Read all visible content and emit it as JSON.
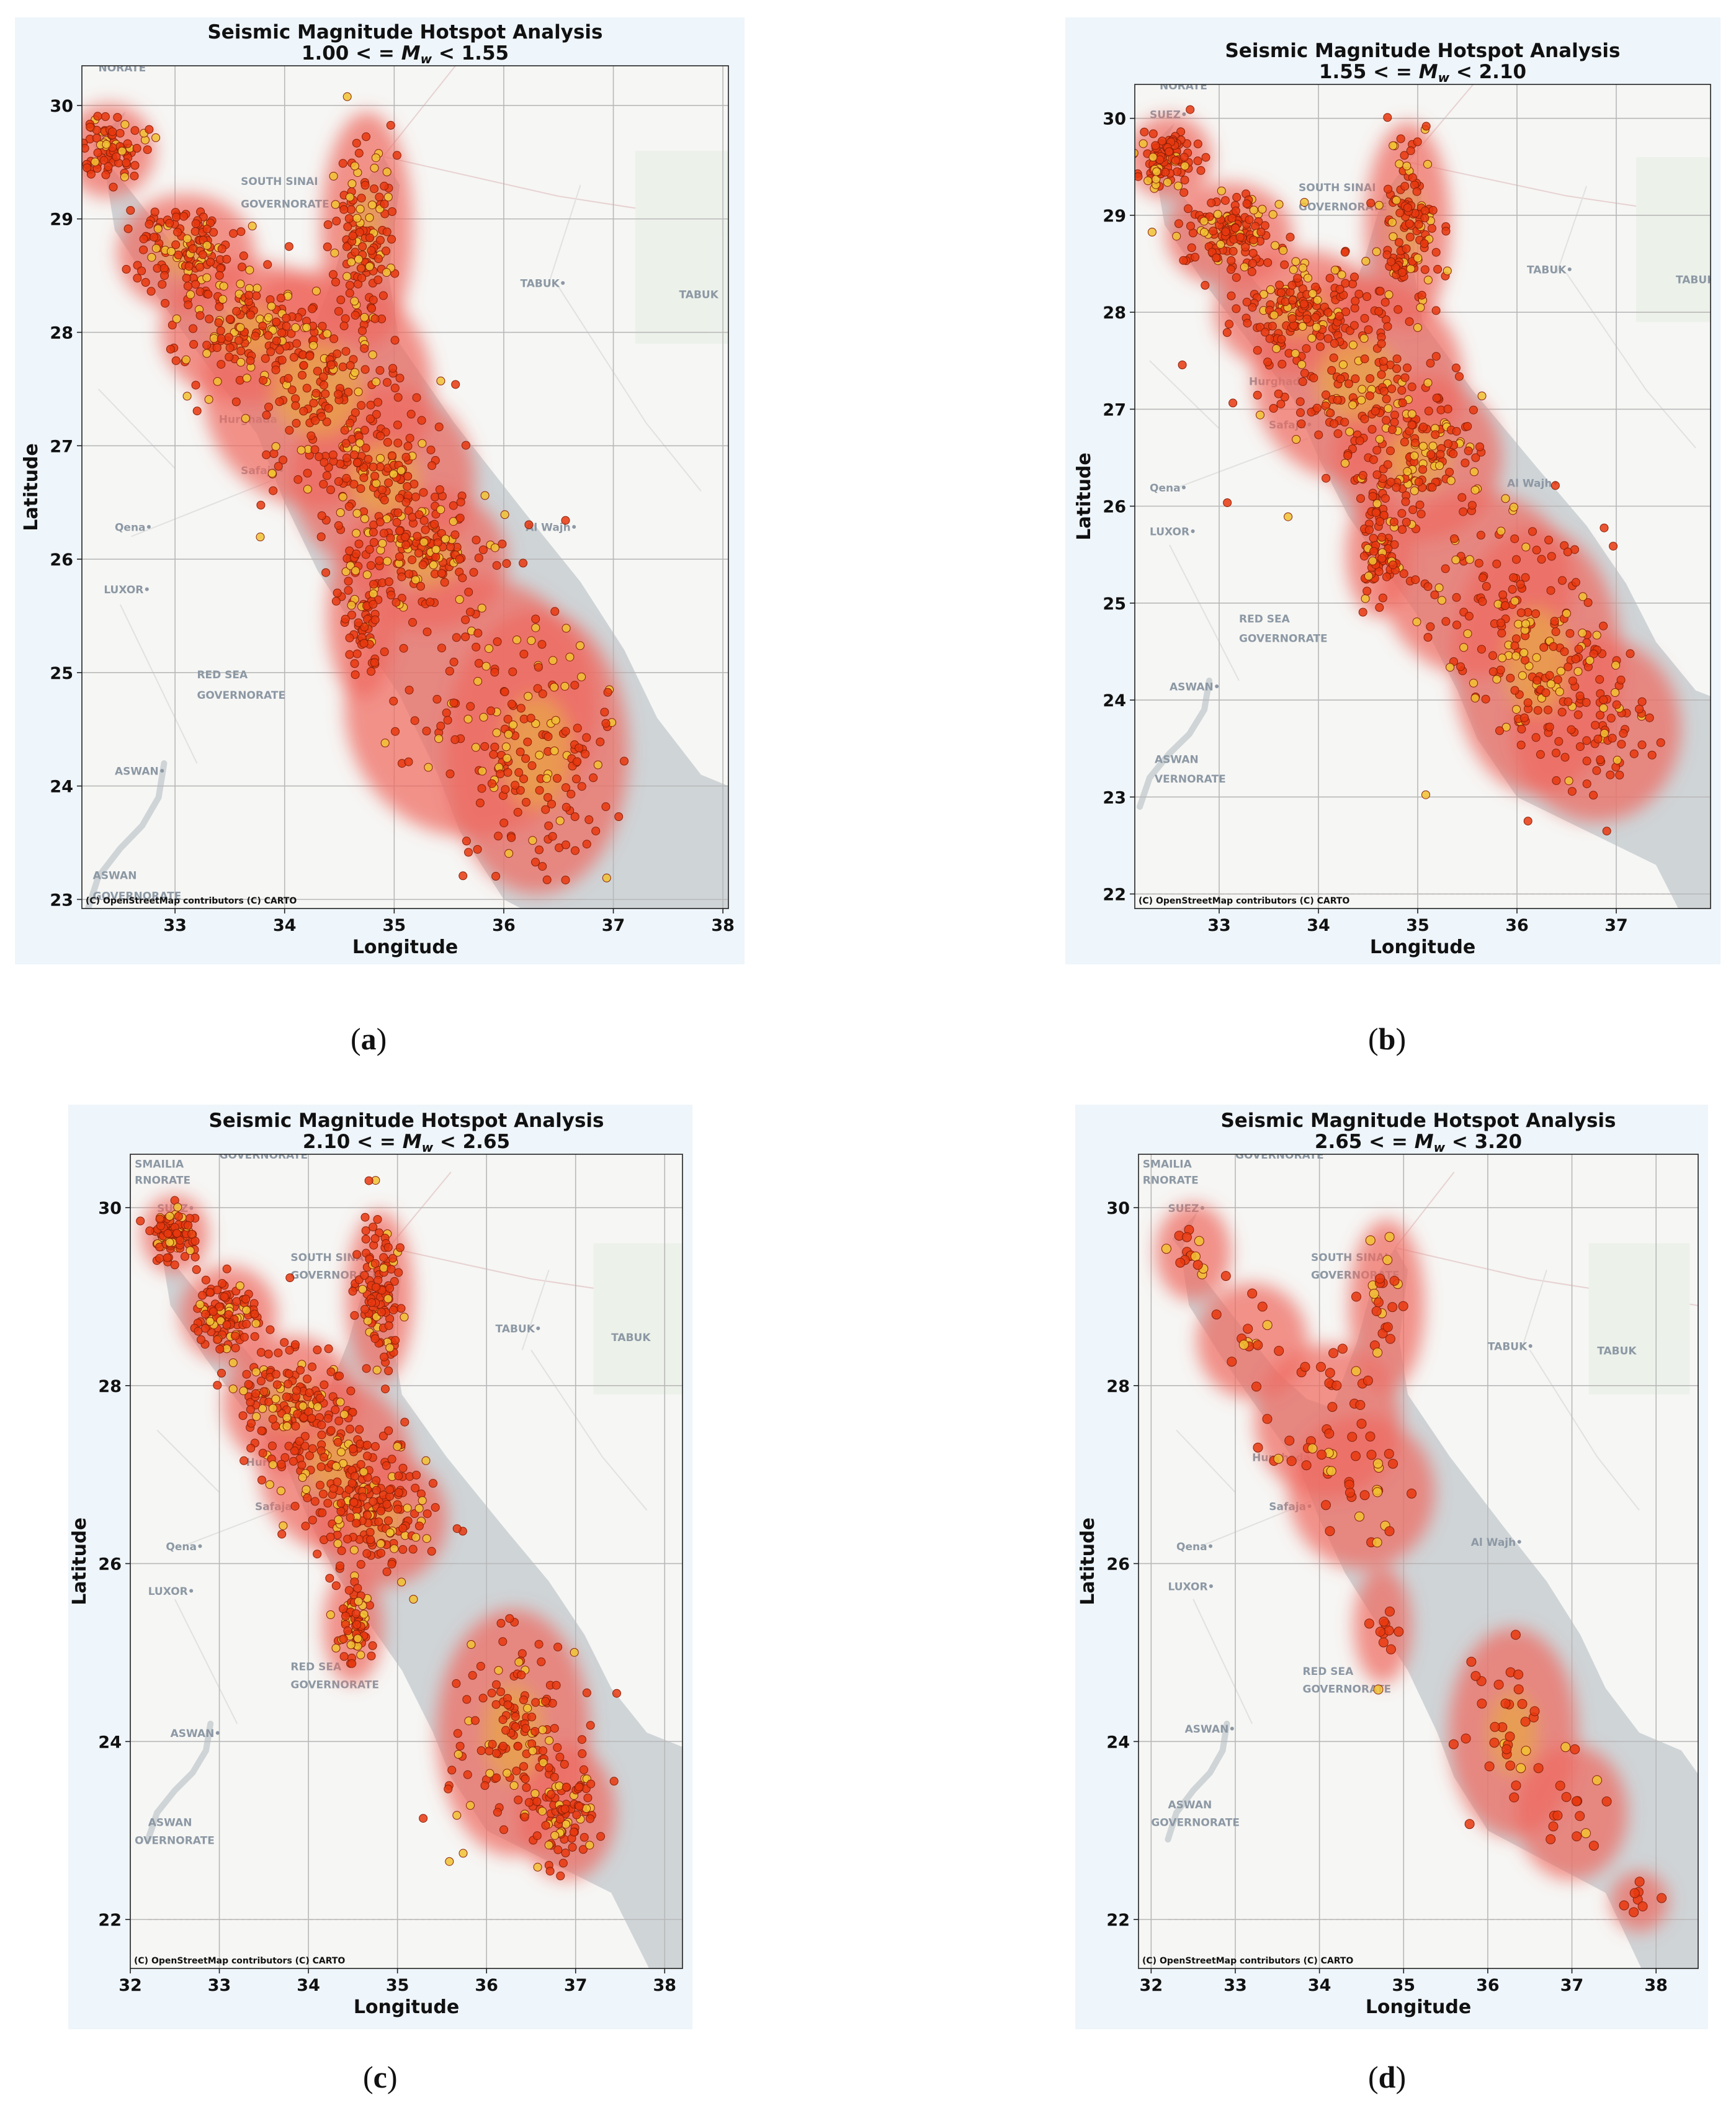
{
  "figure": {
    "panels": [
      {
        "id": "a",
        "caption_letter": "a",
        "title": "Seismic Magnitude Hotspot Analysis",
        "subtitle": "1.00 < = M_w < 1.55",
        "range_lo": "1.00",
        "range_hi": "1.55",
        "xlabel": "Longitude",
        "ylabel": "Latitude",
        "attribution": "(C) OpenStreetMap contributors (C) CARTO",
        "xlim": [
          32.15,
          38.05
        ],
        "ylim": [
          22.92,
          30.35
        ],
        "xticks": [
          "33",
          "34",
          "35",
          "36",
          "37",
          "38"
        ],
        "yticks": [
          "23",
          "24",
          "25",
          "26",
          "27",
          "28",
          "29",
          "30"
        ],
        "place_labels": [
          {
            "text": "SOUTH SINAI",
            "lon": 33.6,
            "lat": 29.3
          },
          {
            "text": "GOVERNORATE",
            "lon": 33.6,
            "lat": 29.1
          },
          {
            "text": "TABUK•",
            "lon": 36.15,
            "lat": 28.4
          },
          {
            "text": "TABUK",
            "lon": 37.6,
            "lat": 28.3
          },
          {
            "text": "Hurghada",
            "lon": 33.4,
            "lat": 27.2
          },
          {
            "text": "Safaja•",
            "lon": 33.6,
            "lat": 26.75
          },
          {
            "text": "Qena•",
            "lon": 32.45,
            "lat": 26.25
          },
          {
            "text": "LUXOR•",
            "lon": 32.35,
            "lat": 25.7
          },
          {
            "text": "Al Wajh•",
            "lon": 36.2,
            "lat": 26.25
          },
          {
            "text": "RED SEA",
            "lon": 33.2,
            "lat": 24.95
          },
          {
            "text": "GOVERNORATE",
            "lon": 33.2,
            "lat": 24.77
          },
          {
            "text": "ASWAN•",
            "lon": 32.45,
            "lat": 24.1
          },
          {
            "text": "ASWAN",
            "lon": 32.25,
            "lat": 23.18
          },
          {
            "text": "GOVERNORATE",
            "lon": 32.25,
            "lat": 23.0
          },
          {
            "text": "NORATE",
            "lon": 32.3,
            "lat": 30.3
          }
        ]
      },
      {
        "id": "b",
        "caption_letter": "b",
        "title": "Seismic Magnitude Hotspot Analysis",
        "subtitle": "1.55 < = M_w < 2.10",
        "range_lo": "1.55",
        "range_hi": "2.10",
        "xlabel": "Longitude",
        "ylabel": "Latitude",
        "attribution": "(C) OpenStreetMap contributors (C) CARTO",
        "xlim": [
          32.15,
          37.95
        ],
        "ylim": [
          21.85,
          30.35
        ],
        "xticks": [
          "33",
          "34",
          "35",
          "36",
          "37"
        ],
        "yticks": [
          "22",
          "23",
          "24",
          "25",
          "26",
          "27",
          "28",
          "29",
          "30"
        ],
        "place_labels": [
          {
            "text": "SOUTH SINAI",
            "lon": 33.8,
            "lat": 29.25
          },
          {
            "text": "GOVERNORATE",
            "lon": 33.8,
            "lat": 29.05
          },
          {
            "text": "TABUK•",
            "lon": 36.1,
            "lat": 28.4
          },
          {
            "text": "TABUK",
            "lon": 37.6,
            "lat": 28.3
          },
          {
            "text": "Hurghada",
            "lon": 33.3,
            "lat": 27.25
          },
          {
            "text": "Safaja•",
            "lon": 33.5,
            "lat": 26.8
          },
          {
            "text": "Qena•",
            "lon": 32.3,
            "lat": 26.15
          },
          {
            "text": "LUXOR•",
            "lon": 32.3,
            "lat": 25.7
          },
          {
            "text": "Al Wajh•",
            "lon": 35.9,
            "lat": 26.2
          },
          {
            "text": "RED SEA",
            "lon": 33.2,
            "lat": 24.8
          },
          {
            "text": "GOVERNORATE",
            "lon": 33.2,
            "lat": 24.6
          },
          {
            "text": "ASWAN•",
            "lon": 32.5,
            "lat": 24.1
          },
          {
            "text": "ASWAN",
            "lon": 32.35,
            "lat": 23.35
          },
          {
            "text": "VERNORATE",
            "lon": 32.35,
            "lat": 23.15
          },
          {
            "text": "NORATE",
            "lon": 32.4,
            "lat": 30.3
          },
          {
            "text": "SUEZ•",
            "lon": 32.3,
            "lat": 30.0
          }
        ]
      },
      {
        "id": "c",
        "caption_letter": "c",
        "title": "Seismic Magnitude Hotspot Analysis",
        "subtitle": "2.10 < = M_w < 2.65",
        "range_lo": "2.10",
        "range_hi": "2.65",
        "xlabel": "Longitude",
        "ylabel": "Latitude",
        "attribution": "(C) OpenStreetMap contributors (C) CARTO",
        "xlim": [
          32.0,
          38.2
        ],
        "ylim": [
          21.45,
          30.6
        ],
        "xticks": [
          "32",
          "33",
          "34",
          "35",
          "36",
          "37",
          "38"
        ],
        "yticks": [
          "22",
          "24",
          "26",
          "28",
          "30"
        ],
        "place_labels": [
          {
            "text": "SMAILIA",
            "lon": 32.05,
            "lat": 30.45
          },
          {
            "text": "RNORATE",
            "lon": 32.05,
            "lat": 30.27
          },
          {
            "text": "GOVERNORATE",
            "lon": 33.0,
            "lat": 30.55
          },
          {
            "text": "SOUTH SINAI",
            "lon": 33.8,
            "lat": 29.4
          },
          {
            "text": "GOVERNORATE",
            "lon": 33.8,
            "lat": 29.2
          },
          {
            "text": "TABUK•",
            "lon": 36.1,
            "lat": 28.6
          },
          {
            "text": "TABUK",
            "lon": 37.4,
            "lat": 28.5
          },
          {
            "text": "Hurghada",
            "lon": 33.3,
            "lat": 27.1
          },
          {
            "text": "Safaja•",
            "lon": 33.4,
            "lat": 26.6
          },
          {
            "text": "Qena•",
            "lon": 32.4,
            "lat": 26.15
          },
          {
            "text": "LUXOR•",
            "lon": 32.2,
            "lat": 25.65
          },
          {
            "text": "RED SEA",
            "lon": 33.8,
            "lat": 24.8
          },
          {
            "text": "GOVERNORATE",
            "lon": 33.8,
            "lat": 24.6
          },
          {
            "text": "ASWAN•",
            "lon": 32.45,
            "lat": 24.05
          },
          {
            "text": "ASWAN",
            "lon": 32.2,
            "lat": 23.05
          },
          {
            "text": "OVERNORATE",
            "lon": 32.05,
            "lat": 22.85
          },
          {
            "text": "SUEZ•",
            "lon": 32.3,
            "lat": 29.95
          }
        ]
      },
      {
        "id": "d",
        "caption_letter": "d",
        "title": "Seismic Magnitude Hotspot Analysis",
        "subtitle": "2.65 < = M_w < 3.20",
        "range_lo": "2.65",
        "range_hi": "3.20",
        "xlabel": "Longitude",
        "ylabel": "Latitude",
        "attribution": "(C) OpenStreetMap contributors (C) CARTO",
        "xlim": [
          31.85,
          38.5
        ],
        "ylim": [
          21.45,
          30.6
        ],
        "xticks": [
          "32",
          "33",
          "34",
          "35",
          "36",
          "37",
          "38"
        ],
        "yticks": [
          "22",
          "24",
          "26",
          "28",
          "30"
        ],
        "place_labels": [
          {
            "text": "SMAILIA",
            "lon": 31.9,
            "lat": 30.45
          },
          {
            "text": "RNORATE",
            "lon": 31.9,
            "lat": 30.27
          },
          {
            "text": "GOVERNORATE",
            "lon": 33.0,
            "lat": 30.55
          },
          {
            "text": "SUEZ•",
            "lon": 32.2,
            "lat": 29.95
          },
          {
            "text": "SOUTH SINAI",
            "lon": 33.9,
            "lat": 29.4
          },
          {
            "text": "GOVERNORATE",
            "lon": 33.9,
            "lat": 29.2
          },
          {
            "text": "TABUK•",
            "lon": 36.0,
            "lat": 28.4
          },
          {
            "text": "TABUK",
            "lon": 37.3,
            "lat": 28.35
          },
          {
            "text": "Hurghada",
            "lon": 33.2,
            "lat": 27.15
          },
          {
            "text": "Safaja•",
            "lon": 33.4,
            "lat": 26.6
          },
          {
            "text": "Qena•",
            "lon": 32.3,
            "lat": 26.15
          },
          {
            "text": "Al Wajh•",
            "lon": 35.8,
            "lat": 26.2
          },
          {
            "text": "LUXOR•",
            "lon": 32.2,
            "lat": 25.7
          },
          {
            "text": "RED SEA",
            "lon": 33.8,
            "lat": 24.75
          },
          {
            "text": "GOVERNORATE",
            "lon": 33.8,
            "lat": 24.55
          },
          {
            "text": "ASWAN•",
            "lon": 32.4,
            "lat": 24.1
          },
          {
            "text": "ASWAN",
            "lon": 32.2,
            "lat": 23.25
          },
          {
            "text": "GOVERNORATE",
            "lon": 32.0,
            "lat": 23.05
          }
        ]
      }
    ]
  },
  "colors": {
    "land": "#f6f6f4",
    "sea": "#cfd4d7",
    "grid": "#b8b8b8",
    "hotspot_outer": "#ee6a5e",
    "hotspot_inner": "#e9a24a",
    "event_fill": "#e8380f",
    "event_edge": "#8a2008",
    "event_light": "#f1c232",
    "panel_bg": "#eef5fb"
  },
  "chart_data": [
    {
      "type": "scatter",
      "title": "Seismic Magnitude Hotspot Analysis",
      "subtitle": "1.00 < = M_w < 1.55",
      "xlabel": "Longitude",
      "ylabel": "Latitude",
      "xlim": [
        32.15,
        38.05
      ],
      "ylim": [
        22.92,
        30.35
      ],
      "clusters": [
        {
          "lon": 32.4,
          "lat": 29.6,
          "density": 0.6,
          "spread": [
            0.15,
            0.15
          ]
        },
        {
          "lon": 33.1,
          "lat": 28.7,
          "density": 0.9,
          "spread": [
            0.25,
            0.2
          ]
        },
        {
          "lon": 33.7,
          "lat": 28.0,
          "density": 1.0,
          "spread": [
            0.35,
            0.25
          ]
        },
        {
          "lon": 34.3,
          "lat": 27.5,
          "density": 1.0,
          "spread": [
            0.45,
            0.45
          ]
        },
        {
          "lon": 34.9,
          "lat": 26.7,
          "density": 1.0,
          "spread": [
            0.35,
            0.35
          ]
        },
        {
          "lon": 35.3,
          "lat": 26.0,
          "density": 0.9,
          "spread": [
            0.3,
            0.25
          ]
        },
        {
          "lon": 34.75,
          "lat": 28.9,
          "density": 0.9,
          "spread": [
            0.15,
            0.45
          ]
        },
        {
          "lon": 34.7,
          "lat": 25.5,
          "density": 0.5,
          "spread": [
            0.1,
            0.3
          ]
        },
        {
          "lon": 36.3,
          "lat": 24.3,
          "density": 1.0,
          "spread": [
            0.35,
            0.55
          ]
        },
        {
          "lon": 35.7,
          "lat": 24.7,
          "density": 0.4,
          "spread": [
            0.5,
            0.5
          ]
        }
      ]
    },
    {
      "type": "scatter",
      "title": "Seismic Magnitude Hotspot Analysis",
      "subtitle": "1.55 < = M_w < 2.10",
      "xlabel": "Longitude",
      "ylabel": "Latitude",
      "xlim": [
        32.15,
        37.95
      ],
      "ylim": [
        21.85,
        30.35
      ],
      "clusters": [
        {
          "lon": 32.5,
          "lat": 29.6,
          "density": 0.7,
          "spread": [
            0.15,
            0.15
          ]
        },
        {
          "lon": 33.1,
          "lat": 28.8,
          "density": 0.9,
          "spread": [
            0.25,
            0.2
          ]
        },
        {
          "lon": 33.8,
          "lat": 28.0,
          "density": 1.0,
          "spread": [
            0.35,
            0.25
          ]
        },
        {
          "lon": 34.4,
          "lat": 27.3,
          "density": 1.0,
          "spread": [
            0.45,
            0.45
          ]
        },
        {
          "lon": 35.0,
          "lat": 26.5,
          "density": 1.0,
          "spread": [
            0.35,
            0.35
          ]
        },
        {
          "lon": 34.9,
          "lat": 28.9,
          "density": 0.9,
          "spread": [
            0.15,
            0.45
          ]
        },
        {
          "lon": 34.6,
          "lat": 25.5,
          "density": 0.5,
          "spread": [
            0.1,
            0.25
          ]
        },
        {
          "lon": 36.2,
          "lat": 24.4,
          "density": 1.0,
          "spread": [
            0.35,
            0.6
          ]
        },
        {
          "lon": 36.8,
          "lat": 23.7,
          "density": 0.5,
          "spread": [
            0.35,
            0.4
          ]
        },
        {
          "lon": 35.6,
          "lat": 25.2,
          "density": 0.4,
          "spread": [
            0.4,
            0.4
          ]
        }
      ]
    },
    {
      "type": "scatter",
      "title": "Seismic Magnitude Hotspot Analysis",
      "subtitle": "2.10 < = M_w < 2.65",
      "xlabel": "Longitude",
      "ylabel": "Latitude",
      "xlim": [
        32.0,
        38.2
      ],
      "ylim": [
        21.45,
        30.6
      ],
      "clusters": [
        {
          "lon": 32.5,
          "lat": 29.7,
          "density": 0.7,
          "spread": [
            0.12,
            0.15
          ]
        },
        {
          "lon": 33.1,
          "lat": 28.8,
          "density": 0.8,
          "spread": [
            0.2,
            0.2
          ]
        },
        {
          "lon": 33.8,
          "lat": 27.8,
          "density": 0.9,
          "spread": [
            0.3,
            0.3
          ]
        },
        {
          "lon": 34.3,
          "lat": 27.1,
          "density": 1.0,
          "spread": [
            0.35,
            0.4
          ]
        },
        {
          "lon": 34.8,
          "lat": 26.5,
          "density": 0.9,
          "spread": [
            0.3,
            0.3
          ]
        },
        {
          "lon": 34.8,
          "lat": 29.0,
          "density": 0.8,
          "spread": [
            0.12,
            0.4
          ]
        },
        {
          "lon": 34.5,
          "lat": 25.3,
          "density": 0.5,
          "spread": [
            0.1,
            0.25
          ]
        },
        {
          "lon": 36.3,
          "lat": 24.1,
          "density": 1.0,
          "spread": [
            0.35,
            0.6
          ]
        },
        {
          "lon": 36.9,
          "lat": 23.2,
          "density": 0.6,
          "spread": [
            0.2,
            0.3
          ]
        }
      ]
    },
    {
      "type": "scatter",
      "title": "Seismic Magnitude Hotspot Analysis",
      "subtitle": "2.65 < = M_w < 3.20",
      "xlabel": "Longitude",
      "ylabel": "Latitude",
      "xlim": [
        31.85,
        38.5
      ],
      "ylim": [
        21.45,
        30.6
      ],
      "clusters": [
        {
          "lon": 32.5,
          "lat": 29.5,
          "density": 0.4,
          "spread": [
            0.15,
            0.2
          ]
        },
        {
          "lon": 33.2,
          "lat": 28.5,
          "density": 0.4,
          "spread": [
            0.25,
            0.25
          ]
        },
        {
          "lon": 34.1,
          "lat": 27.6,
          "density": 0.8,
          "spread": [
            0.35,
            0.35
          ]
        },
        {
          "lon": 34.5,
          "lat": 26.8,
          "density": 0.7,
          "spread": [
            0.35,
            0.35
          ]
        },
        {
          "lon": 34.8,
          "lat": 28.9,
          "density": 0.6,
          "spread": [
            0.15,
            0.4
          ]
        },
        {
          "lon": 34.75,
          "lat": 25.3,
          "density": 0.3,
          "spread": [
            0.1,
            0.25
          ]
        },
        {
          "lon": 36.3,
          "lat": 24.1,
          "density": 0.9,
          "spread": [
            0.3,
            0.5
          ]
        },
        {
          "lon": 37.0,
          "lat": 23.2,
          "density": 0.4,
          "spread": [
            0.25,
            0.3
          ]
        },
        {
          "lon": 37.8,
          "lat": 22.2,
          "density": 0.2,
          "spread": [
            0.1,
            0.1
          ]
        }
      ]
    }
  ]
}
